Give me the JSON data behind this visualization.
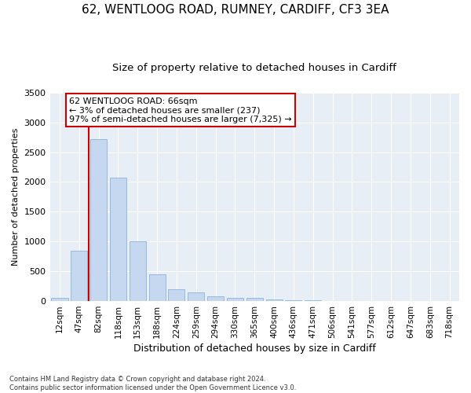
{
  "title": "62, WENTLOOG ROAD, RUMNEY, CARDIFF, CF3 3EA",
  "subtitle": "Size of property relative to detached houses in Cardiff",
  "xlabel": "Distribution of detached houses by size in Cardiff",
  "ylabel": "Number of detached properties",
  "categories": [
    "12sqm",
    "47sqm",
    "82sqm",
    "118sqm",
    "153sqm",
    "188sqm",
    "224sqm",
    "259sqm",
    "294sqm",
    "330sqm",
    "365sqm",
    "400sqm",
    "436sqm",
    "471sqm",
    "506sqm",
    "541sqm",
    "577sqm",
    "612sqm",
    "647sqm",
    "683sqm",
    "718sqm"
  ],
  "values": [
    60,
    850,
    2720,
    2070,
    1010,
    450,
    200,
    140,
    75,
    60,
    50,
    30,
    20,
    10,
    0,
    0,
    0,
    0,
    0,
    0,
    0
  ],
  "bar_color": "#c5d8ef",
  "bar_edge_color": "#8ab4d8",
  "vline_x": 1.5,
  "vline_color": "#cc0000",
  "annotation_text": "62 WENTLOOG ROAD: 66sqm\n← 3% of detached houses are smaller (237)\n97% of semi-detached houses are larger (7,325) →",
  "annotation_box_facecolor": "#ffffff",
  "annotation_box_edgecolor": "#cc0000",
  "ylim": [
    0,
    3500
  ],
  "yticks": [
    0,
    500,
    1000,
    1500,
    2000,
    2500,
    3000,
    3500
  ],
  "plot_bg_color": "#e8eef5",
  "fig_bg_color": "#ffffff",
  "grid_color": "#ffffff",
  "footnote": "Contains HM Land Registry data © Crown copyright and database right 2024.\nContains public sector information licensed under the Open Government Licence v3.0.",
  "title_fontsize": 11,
  "subtitle_fontsize": 9.5,
  "xlabel_fontsize": 9,
  "ylabel_fontsize": 8,
  "annotation_fontsize": 8,
  "tick_fontsize": 7.5,
  "ytick_fontsize": 8
}
